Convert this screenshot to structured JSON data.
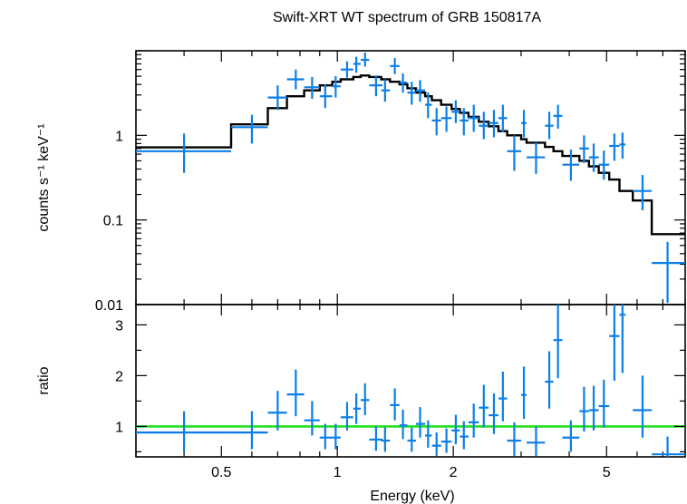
{
  "chart_data": [
    {
      "panel": "spectrum",
      "type": "scatter",
      "title": "Swift-XRT WT spectrum of GRB 150817A",
      "xlabel": "",
      "ylabel": "counts s⁻¹ keV⁻¹",
      "x_scale": "log",
      "y_scale": "log",
      "xlim": [
        0.3,
        8
      ],
      "ylim": [
        0.01,
        10
      ],
      "y_tick_labels": [
        "0.01",
        "0.1",
        "1"
      ],
      "y_tick_values": [
        0.01,
        0.1,
        1
      ],
      "grid": false,
      "colors": {
        "data": "#0a7fe8",
        "model": "#000000"
      },
      "series": [
        {
          "kind": "data",
          "points": [
            {
              "x": 0.4,
              "xlo": 0.3,
              "xhi": 0.53,
              "y": 0.65,
              "ylo": 0.36,
              "yhi": 1.05
            },
            {
              "x": 0.6,
              "xlo": 0.53,
              "xhi": 0.66,
              "y": 1.25,
              "ylo": 0.8,
              "yhi": 1.75
            },
            {
              "x": 0.7,
              "xlo": 0.66,
              "xhi": 0.74,
              "y": 2.8,
              "ylo": 2.0,
              "yhi": 3.9
            },
            {
              "x": 0.78,
              "xlo": 0.74,
              "xhi": 0.82,
              "y": 4.6,
              "ylo": 3.5,
              "yhi": 6.0
            },
            {
              "x": 0.86,
              "xlo": 0.82,
              "xhi": 0.9,
              "y": 3.7,
              "ylo": 2.7,
              "yhi": 4.9
            },
            {
              "x": 0.93,
              "xlo": 0.9,
              "xhi": 0.97,
              "y": 2.9,
              "ylo": 2.1,
              "yhi": 4.0
            },
            {
              "x": 0.99,
              "xlo": 0.97,
              "xhi": 1.02,
              "y": 3.8,
              "ylo": 2.8,
              "yhi": 5.0
            },
            {
              "x": 1.06,
              "xlo": 1.02,
              "xhi": 1.1,
              "y": 6.0,
              "ylo": 4.8,
              "yhi": 7.5
            },
            {
              "x": 1.12,
              "xlo": 1.1,
              "xhi": 1.15,
              "y": 7.0,
              "ylo": 5.5,
              "yhi": 8.5
            },
            {
              "x": 1.18,
              "xlo": 1.15,
              "xhi": 1.21,
              "y": 7.8,
              "ylo": 6.5,
              "yhi": 9.5
            },
            {
              "x": 1.26,
              "xlo": 1.21,
              "xhi": 1.31,
              "y": 3.9,
              "ylo": 2.9,
              "yhi": 5.1
            },
            {
              "x": 1.33,
              "xlo": 1.3,
              "xhi": 1.37,
              "y": 3.4,
              "ylo": 2.5,
              "yhi": 4.6
            },
            {
              "x": 1.41,
              "xlo": 1.37,
              "xhi": 1.45,
              "y": 6.6,
              "ylo": 5.3,
              "yhi": 8.2
            },
            {
              "x": 1.48,
              "xlo": 1.45,
              "xhi": 1.52,
              "y": 4.2,
              "ylo": 3.2,
              "yhi": 5.4
            },
            {
              "x": 1.56,
              "xlo": 1.52,
              "xhi": 1.6,
              "y": 3.2,
              "ylo": 2.3,
              "yhi": 4.3
            },
            {
              "x": 1.64,
              "xlo": 1.6,
              "xhi": 1.69,
              "y": 3.4,
              "ylo": 2.5,
              "yhi": 4.5
            },
            {
              "x": 1.72,
              "xlo": 1.69,
              "xhi": 1.76,
              "y": 2.3,
              "ylo": 1.6,
              "yhi": 3.2
            },
            {
              "x": 1.81,
              "xlo": 1.76,
              "xhi": 1.86,
              "y": 1.5,
              "ylo": 1.0,
              "yhi": 2.1
            },
            {
              "x": 1.92,
              "xlo": 1.86,
              "xhi": 1.98,
              "y": 1.6,
              "ylo": 1.1,
              "yhi": 2.2
            },
            {
              "x": 2.03,
              "xlo": 1.98,
              "xhi": 2.08,
              "y": 1.9,
              "ylo": 1.4,
              "yhi": 2.6
            },
            {
              "x": 2.13,
              "xlo": 2.08,
              "xhi": 2.19,
              "y": 1.5,
              "ylo": 1.0,
              "yhi": 2.1
            },
            {
              "x": 2.26,
              "xlo": 2.19,
              "xhi": 2.33,
              "y": 1.6,
              "ylo": 1.1,
              "yhi": 2.3
            },
            {
              "x": 2.4,
              "xlo": 2.33,
              "xhi": 2.47,
              "y": 1.3,
              "ylo": 0.9,
              "yhi": 1.9
            },
            {
              "x": 2.55,
              "xlo": 2.47,
              "xhi": 2.62,
              "y": 1.4,
              "ylo": 0.95,
              "yhi": 2.0
            },
            {
              "x": 2.69,
              "xlo": 2.62,
              "xhi": 2.76,
              "y": 1.6,
              "ylo": 1.1,
              "yhi": 2.3
            },
            {
              "x": 2.88,
              "xlo": 2.76,
              "xhi": 3.0,
              "y": 0.65,
              "ylo": 0.38,
              "yhi": 1.0
            },
            {
              "x": 3.05,
              "xlo": 3.0,
              "xhi": 3.1,
              "y": 1.4,
              "ylo": 0.95,
              "yhi": 2.0
            },
            {
              "x": 3.28,
              "xlo": 3.1,
              "xhi": 3.46,
              "y": 0.55,
              "ylo": 0.35,
              "yhi": 0.82
            },
            {
              "x": 3.55,
              "xlo": 3.46,
              "xhi": 3.64,
              "y": 1.3,
              "ylo": 0.9,
              "yhi": 1.9
            },
            {
              "x": 3.74,
              "xlo": 3.64,
              "xhi": 3.84,
              "y": 1.7,
              "ylo": 1.2,
              "yhi": 2.3
            },
            {
              "x": 4.04,
              "xlo": 3.84,
              "xhi": 4.25,
              "y": 0.45,
              "ylo": 0.29,
              "yhi": 0.68
            },
            {
              "x": 4.37,
              "xlo": 4.25,
              "xhi": 4.5,
              "y": 0.7,
              "ylo": 0.47,
              "yhi": 1.0
            },
            {
              "x": 4.63,
              "xlo": 4.5,
              "xhi": 4.77,
              "y": 0.55,
              "ylo": 0.37,
              "yhi": 0.8
            },
            {
              "x": 4.92,
              "xlo": 4.77,
              "xhi": 5.08,
              "y": 0.45,
              "ylo": 0.3,
              "yhi": 0.66
            },
            {
              "x": 5.24,
              "xlo": 5.08,
              "xhi": 5.4,
              "y": 0.75,
              "ylo": 0.5,
              "yhi": 1.05
            },
            {
              "x": 5.5,
              "xlo": 5.4,
              "xhi": 5.6,
              "y": 0.78,
              "ylo": 0.53,
              "yhi": 1.08
            },
            {
              "x": 6.2,
              "xlo": 5.85,
              "xhi": 6.55,
              "y": 0.22,
              "ylo": 0.13,
              "yhi": 0.34
            },
            {
              "x": 7.2,
              "xlo": 6.55,
              "xhi": 8.0,
              "y": 0.031,
              "ylo": 0.0105,
              "yhi": 0.055
            }
          ]
        },
        {
          "kind": "model",
          "steps": [
            {
              "x0": 0.3,
              "x1": 0.53,
              "y": 0.72
            },
            {
              "x0": 0.53,
              "x1": 0.66,
              "y": 1.35
            },
            {
              "x0": 0.66,
              "x1": 0.74,
              "y": 2.1
            },
            {
              "x0": 0.74,
              "x1": 0.82,
              "y": 2.9
            },
            {
              "x0": 0.82,
              "x1": 0.9,
              "y": 3.4
            },
            {
              "x0": 0.9,
              "x1": 0.97,
              "y": 3.9
            },
            {
              "x0": 0.97,
              "x1": 1.02,
              "y": 4.3
            },
            {
              "x0": 1.02,
              "x1": 1.1,
              "y": 4.6
            },
            {
              "x0": 1.1,
              "x1": 1.15,
              "y": 4.9
            },
            {
              "x0": 1.15,
              "x1": 1.21,
              "y": 5.1
            },
            {
              "x0": 1.21,
              "x1": 1.3,
              "y": 4.9
            },
            {
              "x0": 1.3,
              "x1": 1.37,
              "y": 4.6
            },
            {
              "x0": 1.37,
              "x1": 1.45,
              "y": 4.3
            },
            {
              "x0": 1.45,
              "x1": 1.52,
              "y": 4.0
            },
            {
              "x0": 1.52,
              "x1": 1.6,
              "y": 3.6
            },
            {
              "x0": 1.6,
              "x1": 1.69,
              "y": 3.2
            },
            {
              "x0": 1.69,
              "x1": 1.76,
              "y": 2.9
            },
            {
              "x0": 1.76,
              "x1": 1.86,
              "y": 2.6
            },
            {
              "x0": 1.86,
              "x1": 1.98,
              "y": 2.3
            },
            {
              "x0": 1.98,
              "x1": 2.08,
              "y": 2.05
            },
            {
              "x0": 2.08,
              "x1": 2.19,
              "y": 1.85
            },
            {
              "x0": 2.19,
              "x1": 2.33,
              "y": 1.65
            },
            {
              "x0": 2.33,
              "x1": 2.47,
              "y": 1.45
            },
            {
              "x0": 2.47,
              "x1": 2.62,
              "y": 1.28
            },
            {
              "x0": 2.62,
              "x1": 2.76,
              "y": 1.12
            },
            {
              "x0": 2.76,
              "x1": 3.0,
              "y": 1.0
            },
            {
              "x0": 3.0,
              "x1": 3.1,
              "y": 0.9
            },
            {
              "x0": 3.1,
              "x1": 3.46,
              "y": 0.82
            },
            {
              "x0": 3.46,
              "x1": 3.64,
              "y": 0.73
            },
            {
              "x0": 3.64,
              "x1": 3.84,
              "y": 0.65
            },
            {
              "x0": 3.84,
              "x1": 4.25,
              "y": 0.57
            },
            {
              "x0": 4.25,
              "x1": 4.5,
              "y": 0.5
            },
            {
              "x0": 4.5,
              "x1": 4.77,
              "y": 0.43
            },
            {
              "x0": 4.77,
              "x1": 5.08,
              "y": 0.36
            },
            {
              "x0": 5.08,
              "x1": 5.4,
              "y": 0.3
            },
            {
              "x0": 5.4,
              "x1": 5.85,
              "y": 0.22
            },
            {
              "x0": 5.85,
              "x1": 6.55,
              "y": 0.17
            },
            {
              "x0": 6.55,
              "x1": 8.0,
              "y": 0.068
            }
          ]
        }
      ]
    },
    {
      "panel": "ratio",
      "type": "scatter",
      "xlabel": "Energy (keV)",
      "ylabel": "ratio",
      "x_scale": "log",
      "y_scale": "linear",
      "xlim": [
        0.3,
        8
      ],
      "ylim": [
        0.4,
        3.4
      ],
      "x_tick_labels": [
        "0.5",
        "1",
        "2",
        "5"
      ],
      "x_tick_values": [
        0.5,
        1,
        2,
        5
      ],
      "y_tick_labels": [
        "1",
        "2",
        "3"
      ],
      "y_tick_values": [
        1,
        2,
        3
      ],
      "grid": false,
      "reference_line": {
        "y": 1,
        "color": "#22e022"
      },
      "colors": {
        "data": "#0a7fe8"
      },
      "series": [
        {
          "kind": "data",
          "points": [
            {
              "x": 0.4,
              "xlo": 0.3,
              "xhi": 0.53,
              "y": 0.88,
              "ylo": 0.5,
              "yhi": 1.3
            },
            {
              "x": 0.6,
              "xlo": 0.53,
              "xhi": 0.66,
              "y": 0.88,
              "ylo": 0.55,
              "yhi": 1.3
            },
            {
              "x": 0.7,
              "xlo": 0.66,
              "xhi": 0.74,
              "y": 1.27,
              "ylo": 0.92,
              "yhi": 1.7
            },
            {
              "x": 0.78,
              "xlo": 0.74,
              "xhi": 0.82,
              "y": 1.63,
              "ylo": 1.2,
              "yhi": 2.12
            },
            {
              "x": 0.86,
              "xlo": 0.82,
              "xhi": 0.9,
              "y": 1.12,
              "ylo": 0.82,
              "yhi": 1.5
            },
            {
              "x": 0.93,
              "xlo": 0.9,
              "xhi": 0.97,
              "y": 0.78,
              "ylo": 0.55,
              "yhi": 1.05
            },
            {
              "x": 0.99,
              "xlo": 0.97,
              "xhi": 1.02,
              "y": 0.78,
              "ylo": 0.55,
              "yhi": 1.05
            },
            {
              "x": 1.06,
              "xlo": 1.02,
              "xhi": 1.1,
              "y": 1.18,
              "ylo": 0.92,
              "yhi": 1.48
            },
            {
              "x": 1.12,
              "xlo": 1.1,
              "xhi": 1.15,
              "y": 1.35,
              "ylo": 1.05,
              "yhi": 1.65
            },
            {
              "x": 1.18,
              "xlo": 1.15,
              "xhi": 1.21,
              "y": 1.52,
              "ylo": 1.22,
              "yhi": 1.85
            },
            {
              "x": 1.26,
              "xlo": 1.21,
              "xhi": 1.31,
              "y": 0.74,
              "ylo": 0.52,
              "yhi": 1.0
            },
            {
              "x": 1.33,
              "xlo": 1.3,
              "xhi": 1.37,
              "y": 0.72,
              "ylo": 0.5,
              "yhi": 0.98
            },
            {
              "x": 1.41,
              "xlo": 1.37,
              "xhi": 1.45,
              "y": 1.42,
              "ylo": 1.12,
              "yhi": 1.75
            },
            {
              "x": 1.48,
              "xlo": 1.45,
              "xhi": 1.52,
              "y": 1.02,
              "ylo": 0.75,
              "yhi": 1.33
            },
            {
              "x": 1.56,
              "xlo": 1.52,
              "xhi": 1.6,
              "y": 0.72,
              "ylo": 0.5,
              "yhi": 0.98
            },
            {
              "x": 1.64,
              "xlo": 1.6,
              "xhi": 1.69,
              "y": 1.05,
              "ylo": 0.78,
              "yhi": 1.38
            },
            {
              "x": 1.72,
              "xlo": 1.69,
              "xhi": 1.76,
              "y": 0.82,
              "ylo": 0.58,
              "yhi": 1.12
            },
            {
              "x": 1.81,
              "xlo": 1.76,
              "xhi": 1.86,
              "y": 0.62,
              "ylo": 0.42,
              "yhi": 0.88
            },
            {
              "x": 1.92,
              "xlo": 1.86,
              "xhi": 1.98,
              "y": 0.7,
              "ylo": 0.48,
              "yhi": 0.96
            },
            {
              "x": 2.03,
              "xlo": 1.98,
              "xhi": 2.08,
              "y": 0.92,
              "ylo": 0.65,
              "yhi": 1.23
            },
            {
              "x": 2.13,
              "xlo": 2.08,
              "xhi": 2.19,
              "y": 0.8,
              "ylo": 0.55,
              "yhi": 1.1
            },
            {
              "x": 2.26,
              "xlo": 2.19,
              "xhi": 2.33,
              "y": 1.08,
              "ylo": 0.78,
              "yhi": 1.45
            },
            {
              "x": 2.4,
              "xlo": 2.33,
              "xhi": 2.47,
              "y": 1.37,
              "ylo": 0.98,
              "yhi": 1.82
            },
            {
              "x": 2.55,
              "xlo": 2.47,
              "xhi": 2.62,
              "y": 1.22,
              "ylo": 0.85,
              "yhi": 1.65
            },
            {
              "x": 2.69,
              "xlo": 2.62,
              "xhi": 2.76,
              "y": 1.55,
              "ylo": 1.1,
              "yhi": 2.08
            },
            {
              "x": 2.88,
              "xlo": 2.76,
              "xhi": 3.0,
              "y": 0.72,
              "ylo": 0.42,
              "yhi": 1.08
            },
            {
              "x": 3.05,
              "xlo": 3.0,
              "xhi": 3.1,
              "y": 1.62,
              "ylo": 1.15,
              "yhi": 2.18
            },
            {
              "x": 3.28,
              "xlo": 3.1,
              "xhi": 3.46,
              "y": 0.68,
              "ylo": 0.42,
              "yhi": 1.0
            },
            {
              "x": 3.55,
              "xlo": 3.46,
              "xhi": 3.64,
              "y": 1.88,
              "ylo": 1.35,
              "yhi": 2.48
            },
            {
              "x": 3.74,
              "xlo": 3.64,
              "xhi": 3.84,
              "y": 2.7,
              "ylo": 1.95,
              "yhi": 3.4
            },
            {
              "x": 4.04,
              "xlo": 3.84,
              "xhi": 4.25,
              "y": 0.78,
              "ylo": 0.5,
              "yhi": 1.12
            },
            {
              "x": 4.37,
              "xlo": 4.25,
              "xhi": 4.5,
              "y": 1.3,
              "ylo": 0.9,
              "yhi": 1.78
            },
            {
              "x": 4.63,
              "xlo": 4.5,
              "xhi": 4.77,
              "y": 1.32,
              "ylo": 0.92,
              "yhi": 1.8
            },
            {
              "x": 4.92,
              "xlo": 4.77,
              "xhi": 5.08,
              "y": 1.4,
              "ylo": 0.98,
              "yhi": 1.92
            },
            {
              "x": 5.24,
              "xlo": 5.08,
              "xhi": 5.4,
              "y": 2.78,
              "ylo": 1.9,
              "yhi": 3.4
            },
            {
              "x": 5.5,
              "xlo": 5.4,
              "xhi": 5.6,
              "y": 3.2,
              "ylo": 2.05,
              "yhi": 3.4
            },
            {
              "x": 6.2,
              "xlo": 5.85,
              "xhi": 6.55,
              "y": 1.32,
              "ylo": 0.78,
              "yhi": 2.0
            },
            {
              "x": 7.2,
              "xlo": 6.55,
              "xhi": 8.0,
              "y": 0.45,
              "ylo": 0.4,
              "yhi": 0.8
            }
          ]
        }
      ]
    }
  ]
}
